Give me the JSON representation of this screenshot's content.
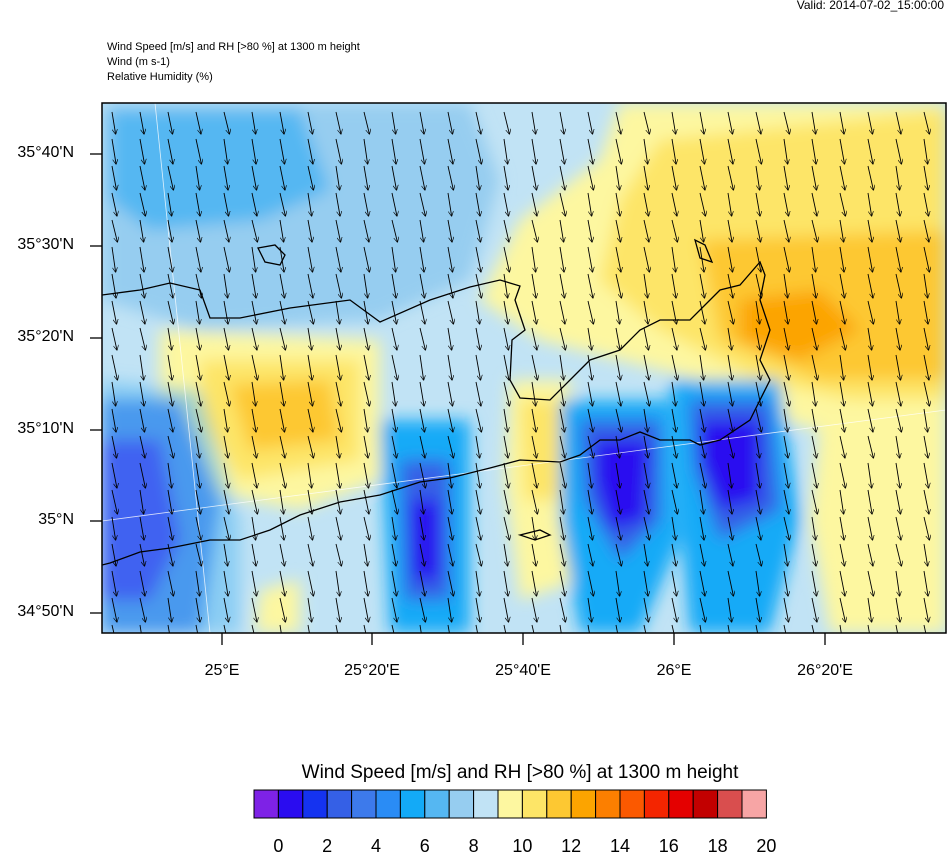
{
  "valid_label": "Valid: 2014-07-02_15:00:00",
  "header": {
    "line1": "Wind Speed [m/s] and RH [>80 %] at 1300 m height",
    "line2": "Wind   (m s-1)",
    "line3": "Relative Humidity   (%)"
  },
  "map": {
    "lat_labels": [
      "35°40'N",
      "35°30'N",
      "35°20'N",
      "35°10'N",
      "35°N",
      "34°50'N"
    ],
    "lon_labels": [
      "25°E",
      "25°20'E",
      "25°40'E",
      "26°E",
      "26°20'E"
    ],
    "wind_arrow_direction": "south-southeast",
    "wind_barbs_color": "#000000",
    "coastline_color": "#000000"
  },
  "colorbar": {
    "title": "Wind Speed [m/s] and RH [>80 %] at 1300 m height",
    "tick_labels": [
      "0",
      "2",
      "4",
      "6",
      "8",
      "10",
      "12",
      "14",
      "16",
      "18",
      "20"
    ],
    "colors": [
      "#7e22e6",
      "#2a0cf0",
      "#1533f0",
      "#3560e6",
      "#3d7aeb",
      "#2a8cf5",
      "#13aaf7",
      "#55b7f2",
      "#96cdf0",
      "#c1e3f5",
      "#fdf7a0",
      "#fde567",
      "#fdc832",
      "#fca400",
      "#fc7f00",
      "#fb5900",
      "#f42500",
      "#e40000",
      "#c20000",
      "#d94e4e",
      "#f7a5a5"
    ]
  }
}
